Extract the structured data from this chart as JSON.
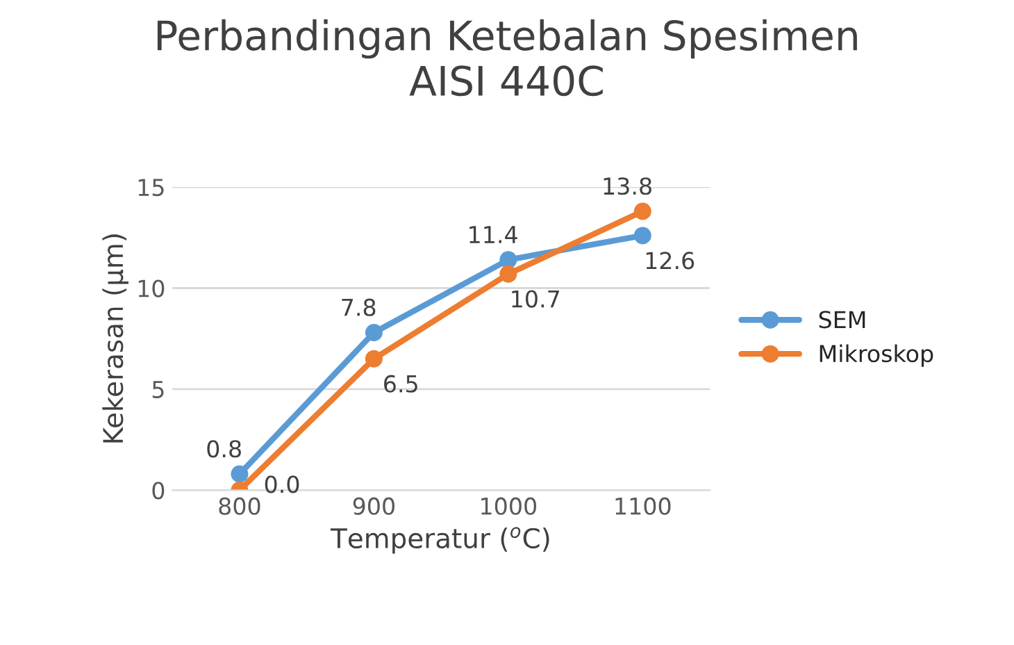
{
  "chart_data": {
    "type": "line",
    "title": "Perbandingan Ketebalan Spesimen\nAISI 440C",
    "xlabel": "Temperatur ($^{o}$C)",
    "ylabel": "Kekerasan (μm)",
    "categories": [
      "800",
      "900",
      "1000",
      "1100"
    ],
    "series": [
      {
        "name": "SEM",
        "color": "#5b9bd5",
        "values": [
          0.8,
          7.8,
          11.4,
          12.6
        ],
        "value_labels": [
          "0.8",
          "7.8",
          "11.4",
          "12.6"
        ]
      },
      {
        "name": "Mikroskop",
        "color": "#ed7d31",
        "values": [
          0.0,
          6.5,
          10.7,
          13.8
        ],
        "value_labels": [
          "0.0",
          "6.5",
          "10.7",
          "13.8"
        ]
      }
    ],
    "ylim": [
      0,
      15
    ],
    "yticks": [
      0,
      5,
      10,
      15
    ],
    "grid": "y",
    "legend": "right",
    "marker": "circle",
    "line_style": "solid"
  }
}
